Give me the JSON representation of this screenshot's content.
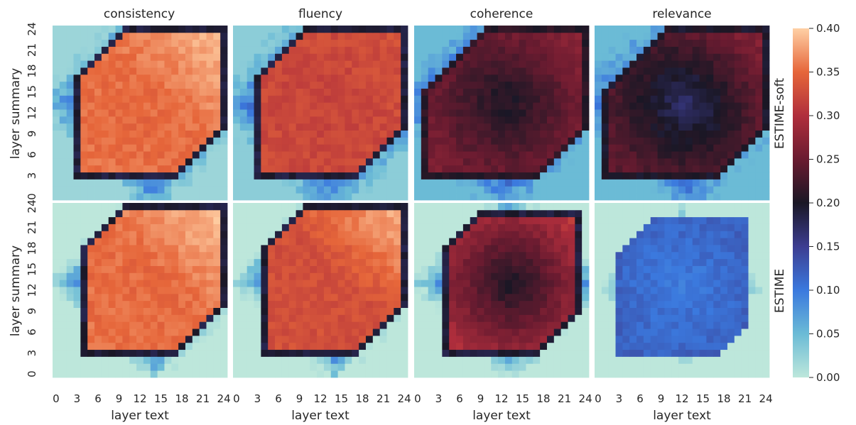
{
  "chart_data": {
    "type": "heatmap",
    "grid": {
      "rows": [
        "ESTIME-soft",
        "ESTIME"
      ],
      "columns": [
        "consistency",
        "fluency",
        "coherence",
        "relevance"
      ]
    },
    "xlabel": "layer text",
    "ylabel": "layer summary",
    "x_ticks": [
      "0",
      "3",
      "6",
      "9",
      "12",
      "15",
      "18",
      "21",
      "24"
    ],
    "y_ticks": [
      "0",
      "3",
      "6",
      "9",
      "12",
      "15",
      "18",
      "21",
      "24"
    ],
    "layer_count": 25,
    "colorbar": {
      "ticks": [
        "0.00",
        "0.05",
        "0.10",
        "0.15",
        "0.20",
        "0.25",
        "0.30",
        "0.35",
        "0.40"
      ],
      "range": [
        0,
        0.4
      ],
      "colormap": "icefire"
    },
    "panels": [
      {
        "row": "ESTIME-soft",
        "metric": "consistency",
        "core_value": 0.355,
        "core_top_right_value": 0.395,
        "core_min_value": 0.35,
        "border_value": 0.19,
        "outer_near_value": 0.12,
        "outer_far_value": 0.02,
        "outer_gradient": 0.015,
        "region": {
          "text_min": 3,
          "text_max": 24,
          "summary_min": 3,
          "summary_max": 24
        }
      },
      {
        "row": "ESTIME-soft",
        "metric": "fluency",
        "core_value": 0.325,
        "core_top_right_value": 0.33,
        "core_min_value": 0.32,
        "border_value": 0.19,
        "outer_near_value": 0.12,
        "outer_far_value": 0.03,
        "outer_gradient": 0.012,
        "region": {
          "text_min": 3,
          "text_max": 24,
          "summary_min": 3,
          "summary_max": 24
        }
      },
      {
        "row": "ESTIME-soft",
        "metric": "coherence",
        "core_value": 0.26,
        "core_top_right_value": 0.27,
        "core_min_value": 0.2,
        "border_value": 0.21,
        "outer_near_value": 0.12,
        "outer_far_value": 0.05,
        "outer_gradient": 0.01,
        "region": {
          "text_min": 1,
          "text_max": 24,
          "summary_min": 3,
          "summary_max": 24
        }
      },
      {
        "row": "ESTIME-soft",
        "metric": "relevance",
        "core_value": 0.24,
        "core_top_right_value": 0.27,
        "core_min_value": 0.17,
        "border_value": 0.2,
        "outer_near_value": 0.12,
        "outer_far_value": 0.05,
        "outer_gradient": 0.01,
        "region": {
          "text_min": 1,
          "text_max": 24,
          "summary_min": 3,
          "summary_max": 24
        }
      },
      {
        "row": "ESTIME",
        "metric": "consistency",
        "core_value": 0.355,
        "core_top_right_value": 0.395,
        "core_min_value": 0.35,
        "border_value": 0.19,
        "outer_near_value": 0.1,
        "outer_far_value": 0.0,
        "outer_gradient": 0.02,
        "region": {
          "text_min": 4,
          "text_max": 24,
          "summary_min": 3,
          "summary_max": 24
        }
      },
      {
        "row": "ESTIME",
        "metric": "fluency",
        "core_value": 0.33,
        "core_top_right_value": 0.39,
        "core_min_value": 0.33,
        "border_value": 0.19,
        "outer_near_value": 0.1,
        "outer_far_value": 0.0,
        "outer_gradient": 0.02,
        "region": {
          "text_min": 4,
          "text_max": 24,
          "summary_min": 3,
          "summary_max": 24
        }
      },
      {
        "row": "ESTIME",
        "metric": "coherence",
        "core_value": 0.3,
        "core_top_right_value": 0.31,
        "core_min_value": 0.2,
        "border_value": 0.19,
        "outer_near_value": 0.09,
        "outer_far_value": 0.0,
        "outer_gradient": 0.02,
        "region": {
          "text_min": 4,
          "text_max": 23,
          "summary_min": 3,
          "summary_max": 23
        }
      },
      {
        "row": "ESTIME",
        "metric": "relevance",
        "core_value": 0.12,
        "core_top_right_value": 0.12,
        "core_min_value": 0.1,
        "border_value": 0.12,
        "outer_near_value": 0.05,
        "outer_far_value": 0.0,
        "outer_gradient": 0.03,
        "region": {
          "text_min": 3,
          "text_max": 21,
          "summary_min": 3,
          "summary_max": 22
        }
      }
    ]
  }
}
